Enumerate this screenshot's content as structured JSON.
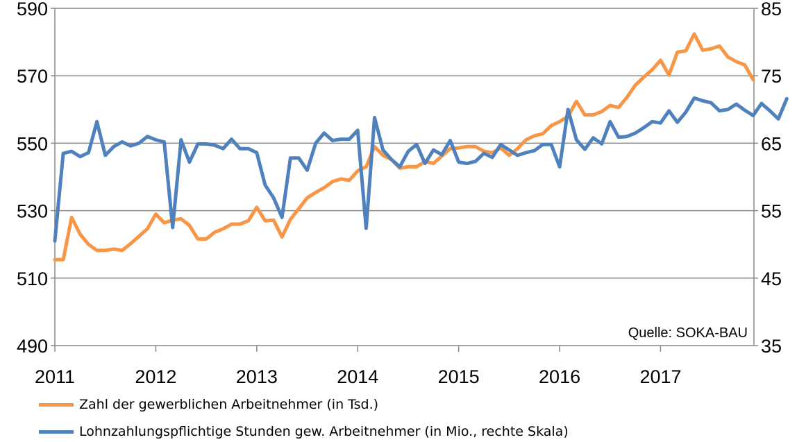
{
  "chart_data": {
    "type": "line",
    "source_note": "Quelle: SOKA-BAU",
    "x_ticks": [
      "2011",
      "2012",
      "2013",
      "2014",
      "2015",
      "2016",
      "2017"
    ],
    "ylim_left": [
      490,
      590
    ],
    "yticks_left": [
      "490",
      "510",
      "530",
      "550",
      "570",
      "590"
    ],
    "ylim_right": [
      35,
      85
    ],
    "yticks_right": [
      "35",
      "45",
      "55",
      "65",
      "75",
      "85"
    ],
    "grid": "horizontal",
    "legend_position": "bottom",
    "series": [
      {
        "name": "Zahl der gewerblichen Arbeitnehmer (in Tsd.)",
        "axis": "left",
        "color": "#f79646",
        "start": "2011-01",
        "values": [
          515.5,
          515.5,
          528,
          523,
          520,
          518.2,
          518.2,
          518.6,
          518.2,
          520.2,
          522.4,
          524.6,
          529,
          526.4,
          527.2,
          527.6,
          525.6,
          521.6,
          521.6,
          523.6,
          524.6,
          526,
          526,
          527,
          531,
          527,
          527.2,
          522.2,
          527.4,
          530.6,
          533.8,
          535.4,
          536.8,
          538.6,
          539.4,
          539,
          541.8,
          543,
          549,
          546.4,
          545.2,
          542.6,
          543,
          543,
          544.6,
          544,
          546.2,
          548.4,
          548.6,
          549,
          549,
          547.6,
          547.2,
          548.6,
          546.4,
          548.4,
          551,
          552.2,
          552.8,
          555.2,
          556.4,
          558,
          562.4,
          558.4,
          558.4,
          559.4,
          561.2,
          560.6,
          563.6,
          567.2,
          569.6,
          571.8,
          574.6,
          570.2,
          577,
          577.4,
          582.4,
          577.6,
          578,
          578.8,
          575.6,
          574.2,
          573.2,
          568.8
        ]
      },
      {
        "name": "Lohnzahlungspflichtige Stunden gew. Arbeitnehmer (in Mio., rechte Skala)",
        "axis": "right",
        "color": "#4f81bd",
        "start": "2011-01",
        "values": [
          50.5,
          63.5,
          63.8,
          63.0,
          63.6,
          68.2,
          63.2,
          64.5,
          65.2,
          64.6,
          65.0,
          66.0,
          65.5,
          65.2,
          52.5,
          65.5,
          62.2,
          64.9,
          64.9,
          64.7,
          64.2,
          65.6,
          64.2,
          64.2,
          63.6,
          58.8,
          56.9,
          54.0,
          62.8,
          62.8,
          61.0,
          65.0,
          66.5,
          65.4,
          65.6,
          65.6,
          66.9,
          52.4,
          68.8,
          64.0,
          62.6,
          61.5,
          63.8,
          64.8,
          62.0,
          64.0,
          63.3,
          65.4,
          62.2,
          62.0,
          62.3,
          63.5,
          62.9,
          64.8,
          64.0,
          63.2,
          63.6,
          63.9,
          64.8,
          64.8,
          61.5,
          70.0,
          65.5,
          64.1,
          65.8,
          64.9,
          68.2,
          65.9,
          66.0,
          66.5,
          67.3,
          68.2,
          68.0,
          69.8,
          68.1,
          69.6,
          71.7,
          71.3,
          71.0,
          69.8,
          70.0,
          70.8,
          69.9,
          69.1,
          70.9,
          69.8,
          68.6,
          71.6
        ]
      }
    ]
  }
}
